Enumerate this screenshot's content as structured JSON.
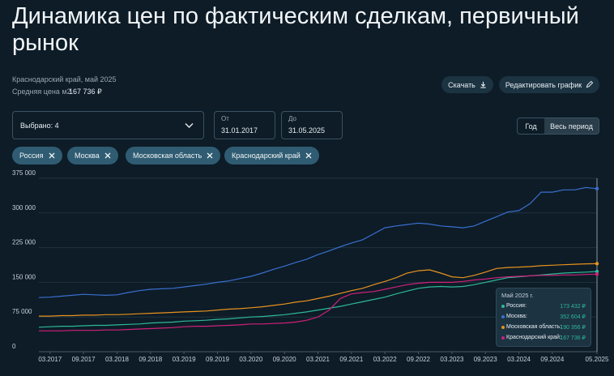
{
  "header": {
    "title": "Динамика цен по фактическим сделкам, первичный рынок",
    "region": "Краснодарский край, май 2025",
    "avg_price_label": "Средняя цена м2",
    "avg_price_value": "167 736 ₽"
  },
  "buttons": {
    "download": "Скачать",
    "edit": "Редактировать график"
  },
  "filters": {
    "selected": "Выбрано: 4",
    "from_label": "От",
    "from_value": "31.01.2017",
    "to_label": "До",
    "to_value": "31.05.2025",
    "period_year": "Год",
    "period_all": "Весь период"
  },
  "tooltip": {
    "title": "Май 2025 г.",
    "rows": [
      {
        "label": "Россия:",
        "value": "173 432 ₽"
      },
      {
        "label": "Москва:",
        "value": "352 604 ₽"
      },
      {
        "label": "Московская область:",
        "value": "190 356 ₽"
      },
      {
        "label": "Краснодарский край:",
        "value": "167 736 ₽"
      }
    ]
  },
  "chart_data": {
    "type": "line",
    "grid": true,
    "x": [
      "01.2017",
      "03.2017",
      "05.2017",
      "07.2017",
      "09.2017",
      "11.2017",
      "01.2018",
      "03.2018",
      "05.2018",
      "07.2018",
      "09.2018",
      "11.2018",
      "01.2019",
      "03.2019",
      "05.2019",
      "07.2019",
      "09.2019",
      "11.2019",
      "01.2020",
      "03.2020",
      "05.2020",
      "07.2020",
      "09.2020",
      "11.2020",
      "01.2021",
      "03.2021",
      "05.2021",
      "07.2021",
      "09.2021",
      "11.2021",
      "01.2022",
      "03.2022",
      "05.2022",
      "07.2022",
      "09.2022",
      "11.2022",
      "01.2023",
      "03.2023",
      "05.2023",
      "07.2023",
      "09.2023",
      "11.2023",
      "01.2024",
      "03.2024",
      "05.2024",
      "07.2024",
      "09.2024",
      "11.2024",
      "01.2025",
      "03.2025",
      "05.2025"
    ],
    "xlim": [
      "01.2017",
      "05.2025"
    ],
    "xticks": [
      "03.2017",
      "09.2017",
      "03.2018",
      "09.2018",
      "03.2019",
      "09.2019",
      "03.2020",
      "09.2020",
      "03.2021",
      "09.2021",
      "03.2022",
      "09.2022",
      "03.2023",
      "09.2023",
      "03.2024",
      "09.2024",
      "05.2025"
    ],
    "ylim": [
      0,
      375000
    ],
    "yticks": [
      {
        "value": 0,
        "label": "0"
      },
      {
        "value": 75000,
        "label": "75 000"
      },
      {
        "value": 150000,
        "label": "150 000"
      },
      {
        "value": 225000,
        "label": "225 000"
      },
      {
        "value": 300000,
        "label": "300 000"
      },
      {
        "value": 375000,
        "label": "375 000"
      }
    ],
    "series": [
      {
        "name": "Россия",
        "color": "#2fb89a",
        "values": [
          53000,
          54000,
          55000,
          55000,
          56000,
          57000,
          57000,
          58000,
          59000,
          60000,
          62000,
          63000,
          64000,
          66000,
          67000,
          68000,
          70000,
          71000,
          73000,
          75000,
          76000,
          78000,
          80000,
          83000,
          86000,
          90000,
          94000,
          98000,
          103000,
          108000,
          113000,
          118000,
          125000,
          131000,
          137000,
          140000,
          141000,
          140000,
          141000,
          145000,
          150000,
          155000,
          160000,
          162000,
          164000,
          166000,
          168000,
          170000,
          171000,
          172000,
          173432
        ]
      },
      {
        "name": "Москва",
        "color": "#3a6fd0",
        "values": [
          117000,
          118000,
          120000,
          122000,
          124000,
          123000,
          122000,
          123000,
          128000,
          132000,
          135000,
          136000,
          137000,
          140000,
          143000,
          146000,
          150000,
          153000,
          158000,
          163000,
          170000,
          178000,
          185000,
          193000,
          200000,
          210000,
          218000,
          227000,
          235000,
          242000,
          255000,
          268000,
          272000,
          275000,
          278000,
          276000,
          272000,
          270000,
          268000,
          272000,
          282000,
          292000,
          302000,
          305000,
          320000,
          345000,
          345000,
          350000,
          350000,
          355000,
          352604
        ]
      },
      {
        "name": "Московская область",
        "color": "#e8921f",
        "values": [
          77000,
          77000,
          78000,
          78000,
          79000,
          79000,
          80000,
          80000,
          81000,
          82000,
          83000,
          84000,
          85000,
          86000,
          87000,
          88000,
          90000,
          92000,
          93000,
          95000,
          97000,
          100000,
          103000,
          107000,
          110000,
          115000,
          120000,
          126000,
          132000,
          137000,
          145000,
          152000,
          160000,
          170000,
          175000,
          177000,
          170000,
          162000,
          160000,
          165000,
          172000,
          180000,
          182000,
          183000,
          184000,
          186000,
          187000,
          188000,
          189000,
          190000,
          190356
        ]
      },
      {
        "name": "Краснодарский край",
        "color": "#d0207a",
        "values": [
          45000,
          45000,
          45000,
          46000,
          46000,
          46000,
          47000,
          47000,
          48000,
          49000,
          50000,
          51000,
          52000,
          54000,
          55000,
          55000,
          56000,
          57000,
          58000,
          60000,
          60000,
          61000,
          62000,
          64000,
          68000,
          75000,
          90000,
          115000,
          125000,
          128000,
          130000,
          135000,
          140000,
          145000,
          148000,
          150000,
          150000,
          150000,
          152000,
          155000,
          157000,
          160000,
          162000,
          163000,
          164000,
          165000,
          165000,
          166000,
          166000,
          167000,
          167736
        ]
      }
    ]
  }
}
